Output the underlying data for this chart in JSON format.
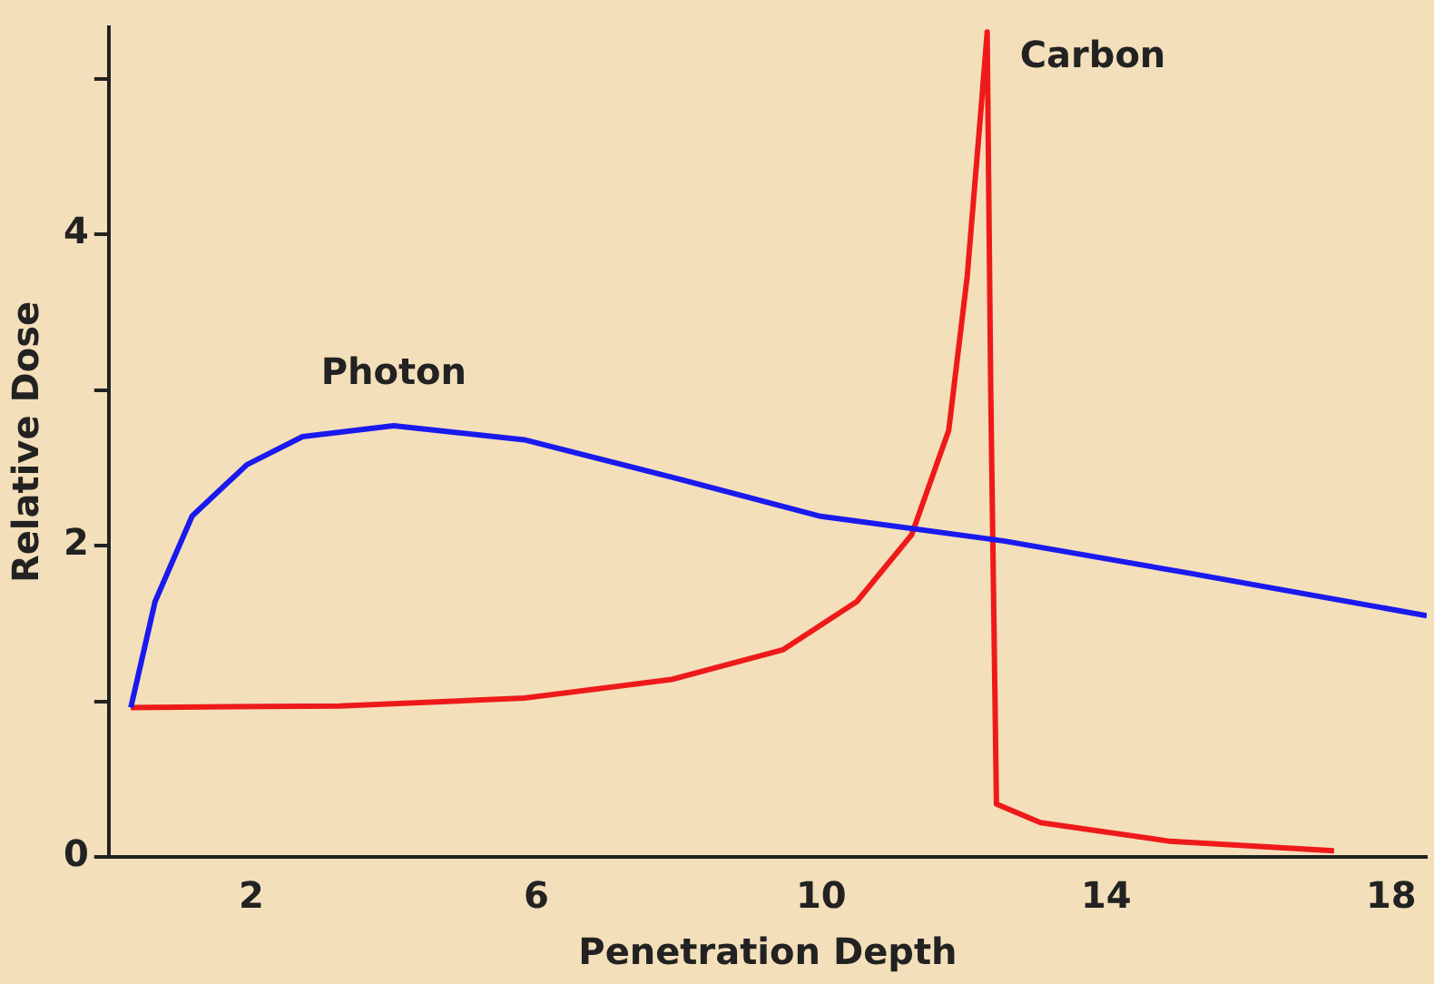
{
  "chart_data": {
    "type": "line",
    "xlabel": "Penetration Depth",
    "ylabel": "Relative Dose",
    "series": [
      {
        "name": "Photon",
        "color": "#1a1aee",
        "x": [
          0.31,
          0.65,
          1.17,
          1.94,
          2.72,
          4.0,
          5.83,
          7.9,
          9.97,
          12.56,
          15.2,
          18.5
        ],
        "values": [
          0.96,
          1.64,
          2.19,
          2.52,
          2.7,
          2.77,
          2.68,
          2.44,
          2.19,
          2.03,
          1.82,
          1.55
        ]
      },
      {
        "name": "Carbon",
        "color": "#ee1a1a",
        "x": [
          0.31,
          3.24,
          5.83,
          7.9,
          9.46,
          10.5,
          11.27,
          11.79,
          12.05,
          12.25,
          12.33,
          12.38,
          12.46,
          13.08,
          14.9,
          17.2
        ],
        "values": [
          0.96,
          0.97,
          1.02,
          1.14,
          1.33,
          1.64,
          2.07,
          2.74,
          3.73,
          4.84,
          5.3,
          3.0,
          0.34,
          0.22,
          0.1,
          0.04
        ]
      }
    ],
    "xlim": [
      0,
      18.5
    ],
    "xticks": [
      2,
      6,
      10,
      14,
      18
    ],
    "ylim": [
      0,
      5.33
    ],
    "yticks": [
      0,
      {
        "value": 1,
        "label": null
      },
      2,
      {
        "value": 3,
        "label": null
      },
      4,
      {
        "value": 5,
        "label": null
      }
    ],
    "grid": false,
    "legend": false,
    "marker": "none",
    "line_style": "solid"
  }
}
